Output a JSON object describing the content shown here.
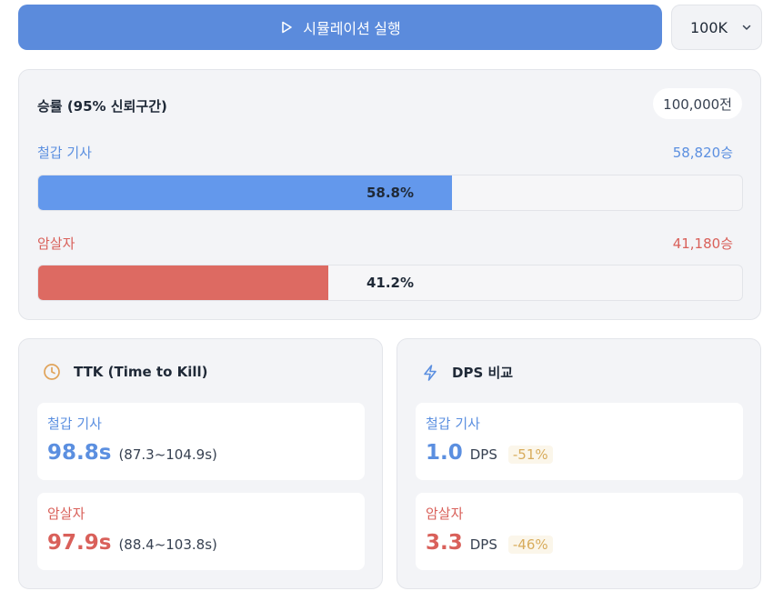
{
  "toolbar": {
    "run_label": "시뮬레이션 실행",
    "iterations_selected": "100K",
    "colors": {
      "accent": "#5b8bdc"
    }
  },
  "winrate": {
    "title": "승률 (95% 신뢰구간)",
    "games_badge": "100,000전",
    "sides": [
      {
        "name": "철갑 기사",
        "wins": "58,820승",
        "percent_label": "58.8%",
        "fraction": 0.588,
        "color": "#6398ec"
      },
      {
        "name": "암살자",
        "wins": "41,180승",
        "percent_label": "41.2%",
        "fraction": 0.412,
        "color": "#dd6a62"
      }
    ]
  },
  "ttk": {
    "icon": "clock-icon",
    "title": "TTK (Time to Kill)",
    "items": [
      {
        "name": "철갑 기사",
        "value": "98.8s",
        "range": "(87.3~104.9s)"
      },
      {
        "name": "암살자",
        "value": "97.9s",
        "range": "(88.4~103.8s)"
      }
    ]
  },
  "dps": {
    "icon": "lightning-icon",
    "title": "DPS 비교",
    "items": [
      {
        "name": "철갑 기사",
        "value": "1.0",
        "unit": "DPS",
        "delta": "-51%"
      },
      {
        "name": "암살자",
        "value": "3.3",
        "unit": "DPS",
        "delta": "-46%"
      }
    ]
  }
}
